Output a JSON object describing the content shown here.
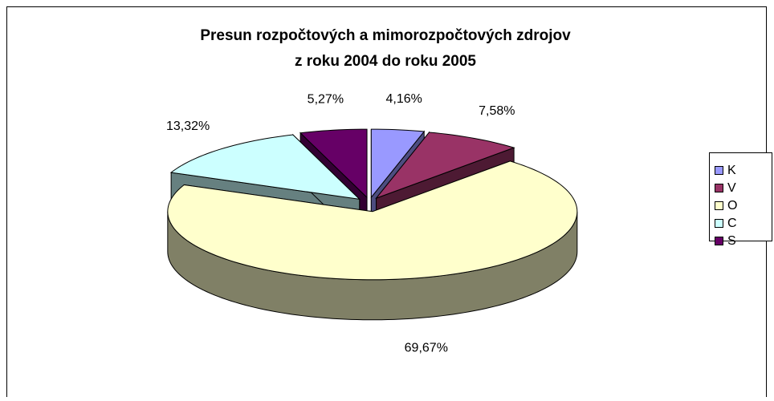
{
  "chart_data": {
    "type": "pie3d",
    "title": [
      "Presun rozpočtových a mimorozpočtových zdrojov",
      "z roku 2004 do roku 2005"
    ],
    "categories": [
      "K",
      "V",
      "O",
      "C",
      "S"
    ],
    "values": [
      4.16,
      7.58,
      69.67,
      13.32,
      5.27
    ],
    "value_labels": [
      "4,16%",
      "7,58%",
      "69,67%",
      "13,32%",
      "5,27%"
    ],
    "colors": [
      "#9999ff",
      "#993366",
      "#ffffcc",
      "#ccffff",
      "#660066"
    ],
    "legend": "right"
  }
}
